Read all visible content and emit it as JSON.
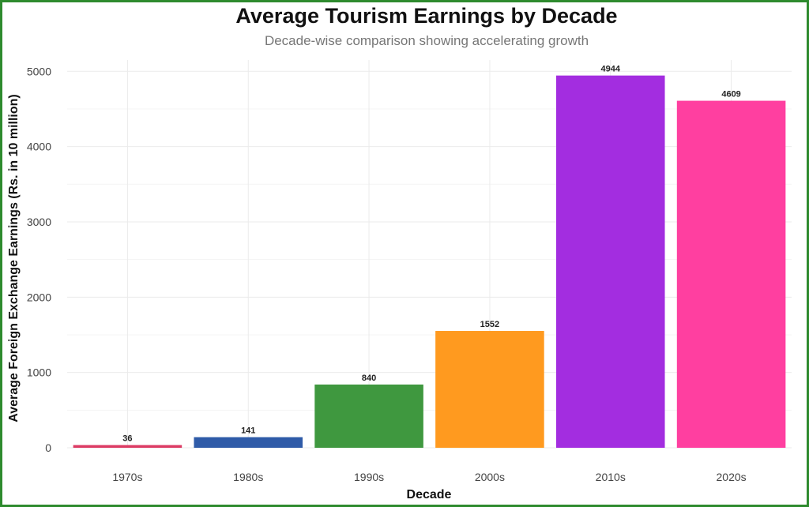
{
  "chart_data": {
    "type": "bar",
    "title": "Average Tourism Earnings by Decade",
    "subtitle": "Decade-wise comparison showing accelerating growth",
    "xlabel": "Decade",
    "ylabel": "Average Foreign Exchange Earnings (Rs. in 10 million)",
    "categories": [
      "1970s",
      "1980s",
      "1990s",
      "2000s",
      "2010s",
      "2020s"
    ],
    "values": [
      36,
      141,
      840,
      1552,
      4944,
      4609
    ],
    "colors": [
      "#dc3c64",
      "#2f5ba8",
      "#3f983f",
      "#ff9a1f",
      "#a32de0",
      "#ff3fa0"
    ],
    "ylim": [
      0,
      5150
    ],
    "yticks": [
      0,
      1000,
      2000,
      3000,
      4000,
      5000
    ],
    "grid": true,
    "legend": "none"
  },
  "frame_color": "#2e8b2e"
}
